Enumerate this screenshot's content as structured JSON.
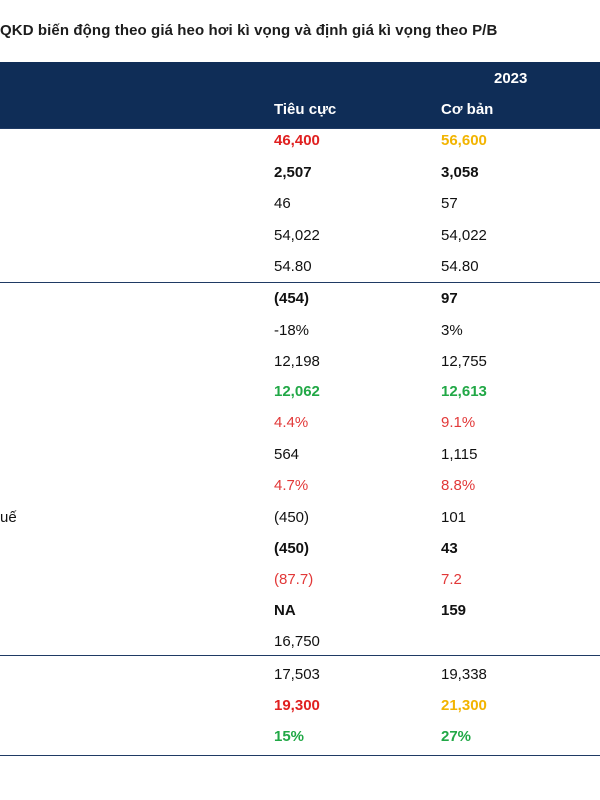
{
  "title": "QKD biến động theo giá heo hơi kì vọng và định giá kì vọng theo P/B",
  "header": {
    "year": "2023",
    "col_negative": "Tiêu cực",
    "col_base": "Cơ bản"
  },
  "side_labels": {
    "row_13_partial": "uế"
  },
  "rows": [
    {
      "negative": "46,400",
      "base": "56,600"
    },
    {
      "negative": "2,507",
      "base": "3,058"
    },
    {
      "negative": "46",
      "base": "57"
    },
    {
      "negative": "54,022",
      "base": "54,022"
    },
    {
      "negative": "54.80",
      "base": "54.80"
    },
    {
      "negative": "(454)",
      "base": "97"
    },
    {
      "negative": "-18%",
      "base": "3%"
    },
    {
      "negative": "12,198",
      "base": "12,755"
    },
    {
      "negative": "12,062",
      "base": "12,613"
    },
    {
      "negative": "4.4%",
      "base": "9.1%"
    },
    {
      "negative": "564",
      "base": "1,115"
    },
    {
      "negative": "4.7%",
      "base": "8.8%"
    },
    {
      "negative": "(450)",
      "base": "101"
    },
    {
      "negative": "(450)",
      "base": "43"
    },
    {
      "negative": "(87.7)",
      "base": "7.2"
    },
    {
      "negative": "NA",
      "base": "159"
    },
    {
      "negative": "16,750",
      "base": ""
    },
    {
      "negative": "17,503",
      "base": "19,338"
    },
    {
      "negative": "19,300",
      "base": "21,300"
    },
    {
      "negative": "15%",
      "base": "27%"
    }
  ],
  "colors": {
    "header_bg": "#0f2d57",
    "red": "#e02020",
    "green": "#21a846",
    "yellow": "#f2b400"
  }
}
